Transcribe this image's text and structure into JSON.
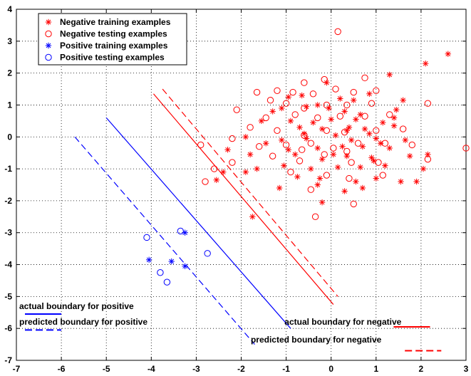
{
  "chart_data": {
    "type": "scatter",
    "xlim": [
      -7,
      3
    ],
    "ylim": [
      -7,
      4
    ],
    "x_ticks": [
      -7,
      -6,
      -5,
      -4,
      -3,
      -2,
      -1,
      0,
      1,
      2,
      3
    ],
    "y_ticks": [
      -7,
      -6,
      -5,
      -4,
      -3,
      -2,
      -1,
      0,
      1,
      2,
      3,
      4
    ],
    "grid": true,
    "grid_style": "dotted",
    "legend_placement": "top-left",
    "colors": {
      "negative": "#ff0000",
      "positive": "#0000ff"
    },
    "legend": [
      {
        "label": "Negative training examples",
        "marker": "star",
        "color": "#ff0000"
      },
      {
        "label": "Negative testing examples",
        "marker": "circle",
        "color": "#ff0000"
      },
      {
        "label": "Positive training examples",
        "marker": "star",
        "color": "#0000ff"
      },
      {
        "label": "Positive testing examples",
        "marker": "circle",
        "color": "#0000ff"
      }
    ],
    "series": [
      {
        "name": "Negative training examples",
        "marker": "star",
        "color": "#ff0000",
        "points": [
          [
            2.6,
            2.6
          ],
          [
            2.1,
            2.3
          ],
          [
            1.3,
            1.95
          ],
          [
            -0.1,
            1.7
          ],
          [
            0.85,
            1.35
          ],
          [
            -0.65,
            1.3
          ],
          [
            -0.95,
            1.25
          ],
          [
            -0.3,
            1.0
          ],
          [
            0.2,
            1.2
          ],
          [
            1.6,
            1.15
          ],
          [
            -1.3,
            0.8
          ],
          [
            -0.55,
            0.95
          ],
          [
            0.3,
            0.8
          ],
          [
            0.65,
            0.7
          ],
          [
            1.4,
            0.6
          ],
          [
            -0.9,
            0.5
          ],
          [
            -0.4,
            0.45
          ],
          [
            0.0,
            0.55
          ],
          [
            0.55,
            0.55
          ],
          [
            1.15,
            0.45
          ],
          [
            -1.55,
            0.5
          ],
          [
            -0.7,
            0.3
          ],
          [
            -0.2,
            0.25
          ],
          [
            0.4,
            0.3
          ],
          [
            0.85,
            0.1
          ],
          [
            1.4,
            0.35
          ],
          [
            -1.9,
            0.0
          ],
          [
            -1.1,
            -0.1
          ],
          [
            -0.55,
            -0.05
          ],
          [
            0.1,
            0.05
          ],
          [
            0.45,
            -0.1
          ],
          [
            1.0,
            -0.05
          ],
          [
            1.65,
            -0.1
          ],
          [
            -1.45,
            -0.2
          ],
          [
            -0.95,
            -0.4
          ],
          [
            -0.3,
            -0.35
          ],
          [
            0.25,
            -0.3
          ],
          [
            0.7,
            -0.3
          ],
          [
            1.3,
            -0.35
          ],
          [
            -2.3,
            -0.4
          ],
          [
            -1.8,
            -0.55
          ],
          [
            -0.8,
            -0.55
          ],
          [
            -0.2,
            -0.7
          ],
          [
            0.35,
            -0.6
          ],
          [
            0.9,
            -0.65
          ],
          [
            1.75,
            -0.6
          ],
          [
            2.15,
            -0.55
          ],
          [
            -2.4,
            -1.1
          ],
          [
            -1.65,
            -1.0
          ],
          [
            -1.05,
            -0.9
          ],
          [
            -0.45,
            -1.0
          ],
          [
            0.15,
            -0.95
          ],
          [
            0.65,
            -0.95
          ],
          [
            1.2,
            -0.9
          ],
          [
            2.05,
            -1.0
          ],
          [
            -2.55,
            -1.35
          ],
          [
            -1.9,
            -1.1
          ],
          [
            -0.75,
            -1.25
          ],
          [
            -0.25,
            -1.3
          ],
          [
            0.55,
            -1.4
          ],
          [
            1.0,
            -1.3
          ],
          [
            1.55,
            -1.4
          ],
          [
            -1.75,
            -2.5
          ],
          [
            -1.15,
            -1.6
          ],
          [
            -0.3,
            -1.5
          ],
          [
            0.3,
            -1.7
          ],
          [
            0.7,
            -1.6
          ],
          [
            -0.2,
            -2.05
          ],
          [
            0.95,
            -0.75
          ],
          [
            1.9,
            -1.4
          ],
          [
            -0.6,
            0.1
          ],
          [
            0.05,
            -0.55
          ],
          [
            1.45,
            0.85
          ],
          [
            0.35,
            0.2
          ],
          [
            -1.1,
            0.9
          ],
          [
            0.5,
            1.15
          ],
          [
            1.1,
            -0.2
          ],
          [
            -0.05,
            0.9
          ],
          [
            0.75,
            0.25
          ]
        ]
      },
      {
        "name": "Negative testing examples",
        "marker": "circle",
        "color": "#ff0000",
        "points": [
          [
            0.15,
            3.3
          ],
          [
            2.15,
            1.05
          ],
          [
            3.0,
            -0.35
          ],
          [
            -0.15,
            1.8
          ],
          [
            -0.6,
            1.7
          ],
          [
            0.75,
            1.85
          ],
          [
            -1.2,
            1.45
          ],
          [
            -0.85,
            1.4
          ],
          [
            -0.4,
            1.35
          ],
          [
            0.1,
            1.5
          ],
          [
            0.5,
            1.4
          ],
          [
            1.0,
            1.45
          ],
          [
            -1.65,
            1.4
          ],
          [
            -1.0,
            1.05
          ],
          [
            -0.6,
            0.9
          ],
          [
            -0.1,
            1.0
          ],
          [
            0.35,
            1.0
          ],
          [
            0.9,
            1.05
          ],
          [
            -2.1,
            0.85
          ],
          [
            -1.45,
            0.6
          ],
          [
            -0.8,
            0.7
          ],
          [
            -0.3,
            0.6
          ],
          [
            0.2,
            0.65
          ],
          [
            0.75,
            0.65
          ],
          [
            1.3,
            0.7
          ],
          [
            -1.8,
            0.3
          ],
          [
            -1.2,
            0.2
          ],
          [
            -0.6,
            0.05
          ],
          [
            -0.1,
            0.2
          ],
          [
            0.3,
            0.15
          ],
          [
            1.0,
            0.2
          ],
          [
            1.6,
            0.25
          ],
          [
            -2.2,
            -0.05
          ],
          [
            -1.6,
            -0.3
          ],
          [
            -1.0,
            -0.25
          ],
          [
            -0.45,
            -0.2
          ],
          [
            0.05,
            -0.35
          ],
          [
            0.6,
            -0.2
          ],
          [
            1.2,
            -0.2
          ],
          [
            1.8,
            -0.25
          ],
          [
            -1.3,
            -0.6
          ],
          [
            -0.7,
            -0.75
          ],
          [
            -0.15,
            -0.55
          ],
          [
            0.45,
            -0.8
          ],
          [
            1.05,
            -0.8
          ],
          [
            2.15,
            -0.7
          ],
          [
            -0.9,
            -1.1
          ],
          [
            -0.1,
            -1.2
          ],
          [
            0.4,
            -1.3
          ],
          [
            1.15,
            -1.2
          ],
          [
            -0.45,
            -1.65
          ],
          [
            0.5,
            -2.1
          ],
          [
            -0.35,
            -2.5
          ],
          [
            -2.9,
            -0.25
          ],
          [
            -2.6,
            -1.0
          ],
          [
            -2.2,
            -0.8
          ],
          [
            -2.8,
            -1.4
          ],
          [
            -1.35,
            1.15
          ],
          [
            0.35,
            -0.45
          ],
          [
            -0.65,
            -0.4
          ]
        ]
      },
      {
        "name": "Positive training examples",
        "marker": "star",
        "color": "#0000ff",
        "points": [
          [
            -3.25,
            -3.0
          ],
          [
            -4.05,
            -3.85
          ],
          [
            -3.55,
            -3.9
          ],
          [
            -3.25,
            -4.05
          ]
        ]
      },
      {
        "name": "Positive testing examples",
        "marker": "circle",
        "color": "#0000ff",
        "points": [
          [
            -4.1,
            -3.15
          ],
          [
            -3.35,
            -2.95
          ],
          [
            -2.75,
            -3.65
          ],
          [
            -3.8,
            -4.25
          ],
          [
            -3.65,
            -4.55
          ]
        ]
      }
    ],
    "lines": [
      {
        "name": "actual boundary for positive",
        "color": "#0000ff",
        "style": "solid",
        "from": [
          -5.0,
          0.6
        ],
        "to": [
          -0.9,
          -6.0
        ]
      },
      {
        "name": "predicted boundary for positive",
        "color": "#0000ff",
        "style": "dashed",
        "from": [
          -5.7,
          0.0
        ],
        "to": [
          -1.7,
          -6.5
        ]
      },
      {
        "name": "actual boundary for negative",
        "color": "#ff0000",
        "style": "solid",
        "from": [
          -3.95,
          1.35
        ],
        "to": [
          0.05,
          -5.25
        ]
      },
      {
        "name": "predicted boundary for negative",
        "color": "#ff0000",
        "style": "dashed",
        "from": [
          -3.75,
          1.5
        ],
        "to": [
          0.15,
          -5.0
        ]
      }
    ],
    "annotations": [
      {
        "text": "actual boundary for positive",
        "at": [
          -7.0,
          -5.3
        ],
        "sample": {
          "from": [
            -7.0,
            -5.55
          ],
          "to": [
            -6.0,
            -5.55
          ]
        },
        "sample_style": "solid",
        "color": "#0000ff"
      },
      {
        "text": "predicted boundary for positive",
        "at": [
          -7.0,
          -5.8
        ],
        "sample": {
          "from": [
            -7.0,
            -6.05
          ],
          "to": [
            -6.0,
            -6.05
          ]
        },
        "sample_style": "dashed",
        "color": "#0000ff"
      },
      {
        "text": "actual boundary for negative",
        "at": [
          -1.1,
          -5.8
        ],
        "sample": {
          "from": [
            1.2,
            -5.95
          ],
          "to": [
            2.2,
            -5.95
          ]
        },
        "sample_style": "solid",
        "color": "#ff0000"
      },
      {
        "text": "predicted boundary for negative",
        "at": [
          -1.85,
          -6.35
        ],
        "sample": {
          "from": [
            1.45,
            -6.7
          ],
          "to": [
            2.45,
            -6.7
          ]
        },
        "sample_style": "dashed",
        "color": "#ff0000"
      }
    ]
  }
}
